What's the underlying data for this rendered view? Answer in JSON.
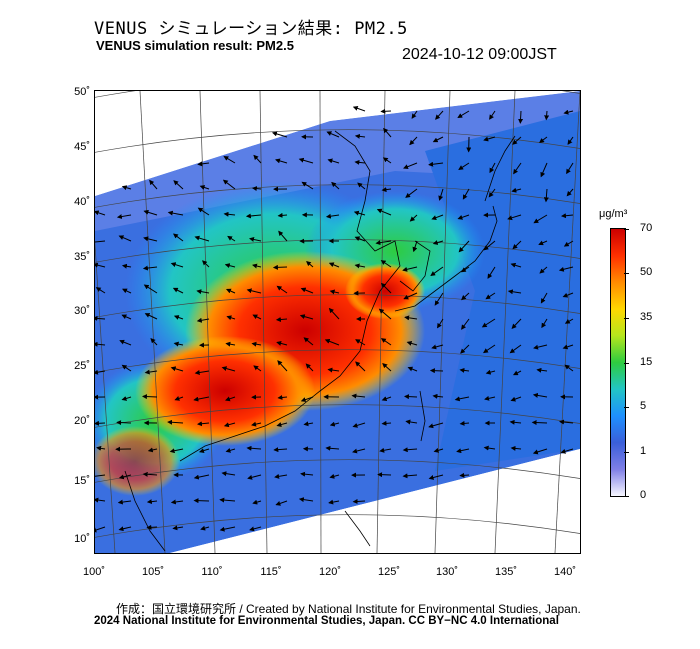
{
  "title_ja": "VENUS シミュレーション結果: PM2.5",
  "title_en": "VENUS simulation result: PM2.5",
  "timestamp": "2024-10-12 09:00JST",
  "map": {
    "lat_labels": [
      "50˚",
      "45˚",
      "40˚",
      "35˚",
      "30˚",
      "25˚",
      "20˚",
      "15˚",
      "10˚"
    ],
    "lon_labels": [
      "100˚",
      "105˚",
      "110˚",
      "115˚",
      "120˚",
      "125˚",
      "130˚",
      "135˚",
      "140˚"
    ]
  },
  "colorbar": {
    "unit": "μg/m³",
    "labels": [
      "70",
      "50",
      "35",
      "15",
      "5",
      "1",
      "0"
    ],
    "colors": [
      "#f7f7ff",
      "#7f7fe6",
      "#3a5fd9",
      "#1e90ff",
      "#22c5c5",
      "#2ecc40",
      "#b5e61d",
      "#ffd700",
      "#ff8c00",
      "#ff3000",
      "#cc0000"
    ]
  },
  "footer": {
    "credit": "作成：国立環境研究所 / Created by National Institute for Environmental Studies, Japan.",
    "copyright": "2024 National Institute for Environmental Studies, Japan. CC BY−NC 4.0 International"
  }
}
